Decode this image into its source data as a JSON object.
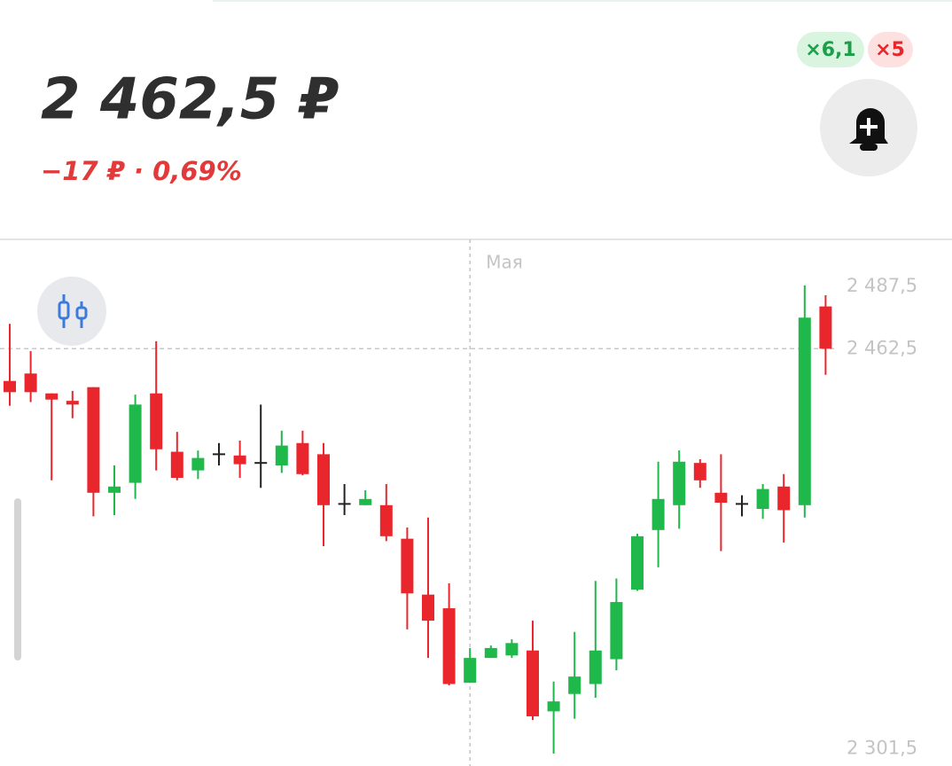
{
  "header": {
    "price": "2 462,5 ₽",
    "change": "−17 ₽ · 0,69%",
    "badges": [
      "×6,1",
      "×5"
    ]
  },
  "chart_data": {
    "type": "candlestick",
    "categories": [
      null,
      null,
      null,
      null,
      null,
      null,
      null,
      null,
      null,
      null,
      null,
      null,
      null,
      null,
      null,
      null,
      null,
      null,
      null,
      null,
      null,
      null,
      "Мая",
      null,
      null,
      null,
      null,
      null,
      null,
      null,
      null,
      null,
      null,
      null,
      null,
      null,
      null,
      null,
      null,
      null
    ],
    "open": [
      2449.5,
      2452.5,
      2444.5,
      2441.5,
      2447,
      2404.5,
      2408.5,
      2444.5,
      2421,
      2413.5,
      2420,
      2419.5,
      2416.5,
      2415.5,
      2424.5,
      2420,
      2400,
      2399.5,
      2399.5,
      2386,
      2363.5,
      2358,
      2328,
      2338,
      2339,
      2341,
      2316.5,
      2323.5,
      2327.5,
      2337.5,
      2365.5,
      2389.5,
      2399.5,
      2416.5,
      2404.5,
      2400,
      2398,
      2407,
      2399.5,
      2479.5
    ],
    "high": [
      2472.5,
      2461.5,
      2444.5,
      2445.5,
      2447,
      2415.5,
      2444,
      2465.5,
      2429,
      2421.5,
      2424.5,
      2425.5,
      2440,
      2429.5,
      2429.5,
      2424.5,
      2408,
      2405.5,
      2408,
      2390.5,
      2394.5,
      2368,
      2342,
      2343,
      2345.5,
      2353,
      2328.5,
      2348.5,
      2369,
      2370,
      2388,
      2417,
      2421.5,
      2418,
      2420,
      2403.5,
      2408,
      2412,
      2488,
      2484
    ],
    "low": [
      2439.5,
      2441,
      2409.5,
      2434.5,
      2395,
      2395.5,
      2402,
      2413.5,
      2409.5,
      2410,
      2415.5,
      2410.5,
      2406.5,
      2412.5,
      2411.5,
      2383,
      2395.5,
      2399.5,
      2385,
      2349.5,
      2338,
      2327,
      2328,
      2338,
      2338,
      2313,
      2299.5,
      2313.5,
      2322,
      2333,
      2365,
      2374.5,
      2390,
      2406.5,
      2381,
      2395,
      2394,
      2384.5,
      2394.5,
      2452
    ],
    "close": [
      2445,
      2445,
      2442,
      2440,
      2404.5,
      2407,
      2440,
      2422,
      2410.5,
      2418.5,
      2420,
      2416,
      2416.5,
      2423.5,
      2412,
      2399.5,
      2400,
      2402,
      2387,
      2364,
      2353,
      2327.5,
      2338,
      2342,
      2344,
      2314.5,
      2320.5,
      2330.5,
      2341,
      2360.5,
      2387,
      2402,
      2417,
      2409.5,
      2400.5,
      2400,
      2406,
      2397.5,
      2475,
      2462.5
    ],
    "up_color": "#1fb84a",
    "down_color": "#e8262b",
    "flat_color": "#222222",
    "ylim": [
      2294.5,
      2506.5
    ],
    "yticks": [
      {
        "value": 2487.5,
        "label": "2 487,5"
      },
      {
        "value": 2462.5,
        "label": "2 462,5"
      },
      {
        "value": 2301.5,
        "label": "2 301,5"
      }
    ],
    "price_line": 2462.5
  }
}
